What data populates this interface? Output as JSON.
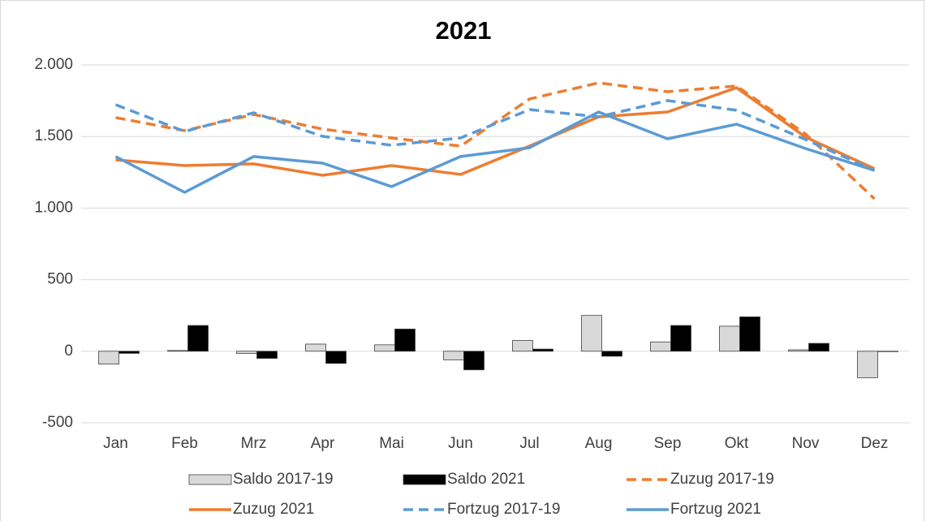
{
  "chart_data": {
    "type": "combo",
    "title": "2021",
    "categories": [
      "Jan",
      "Feb",
      "Mrz",
      "Apr",
      "Mai",
      "Jun",
      "Jul",
      "Aug",
      "Sep",
      "Okt",
      "Nov",
      "Dez"
    ],
    "ylim": [
      -500,
      2000
    ],
    "yticks": [
      -500,
      0,
      500,
      {
        "value": 1000,
        "label": "1.000"
      },
      {
        "value": 1500,
        "label": "1.500"
      },
      {
        "value": 2000,
        "label": "2.000"
      }
    ],
    "grid": true,
    "series": [
      {
        "name": "Saldo 2017-19",
        "type": "bar",
        "color": "#d9d9d9",
        "values": [
          -90,
          5,
          -15,
          50,
          45,
          -60,
          75,
          250,
          65,
          175,
          10,
          -185
        ]
      },
      {
        "name": "Saldo 2021",
        "type": "bar",
        "color": "#000000",
        "values": [
          -15,
          180,
          -50,
          -85,
          155,
          -130,
          15,
          -35,
          180,
          240,
          55,
          -3
        ]
      },
      {
        "name": "Zuzug 2017-19",
        "type": "line",
        "dashed": true,
        "color": "#ed7d31",
        "values": [
          1632,
          1541,
          1654,
          1552,
          1490,
          1433,
          1762,
          1875,
          1813,
          1853,
          1518,
          1065
        ]
      },
      {
        "name": "Zuzug 2021",
        "type": "line",
        "dashed": false,
        "color": "#ed7d31",
        "values": [
          1337,
          1297,
          1309,
          1229,
          1297,
          1235,
          1433,
          1637,
          1671,
          1841,
          1496,
          1275
        ]
      },
      {
        "name": "Fortzug 2017-19",
        "type": "line",
        "dashed": true,
        "color": "#5b9bd5",
        "values": [
          1722,
          1535,
          1666,
          1501,
          1439,
          1490,
          1688,
          1637,
          1751,
          1683,
          1479,
          1263
        ]
      },
      {
        "name": "Fortzug 2021",
        "type": "line",
        "dashed": false,
        "color": "#5b9bd5",
        "values": [
          1360,
          1110,
          1360,
          1314,
          1150,
          1360,
          1422,
          1671,
          1484,
          1586,
          1416,
          1263
        ]
      }
    ]
  }
}
